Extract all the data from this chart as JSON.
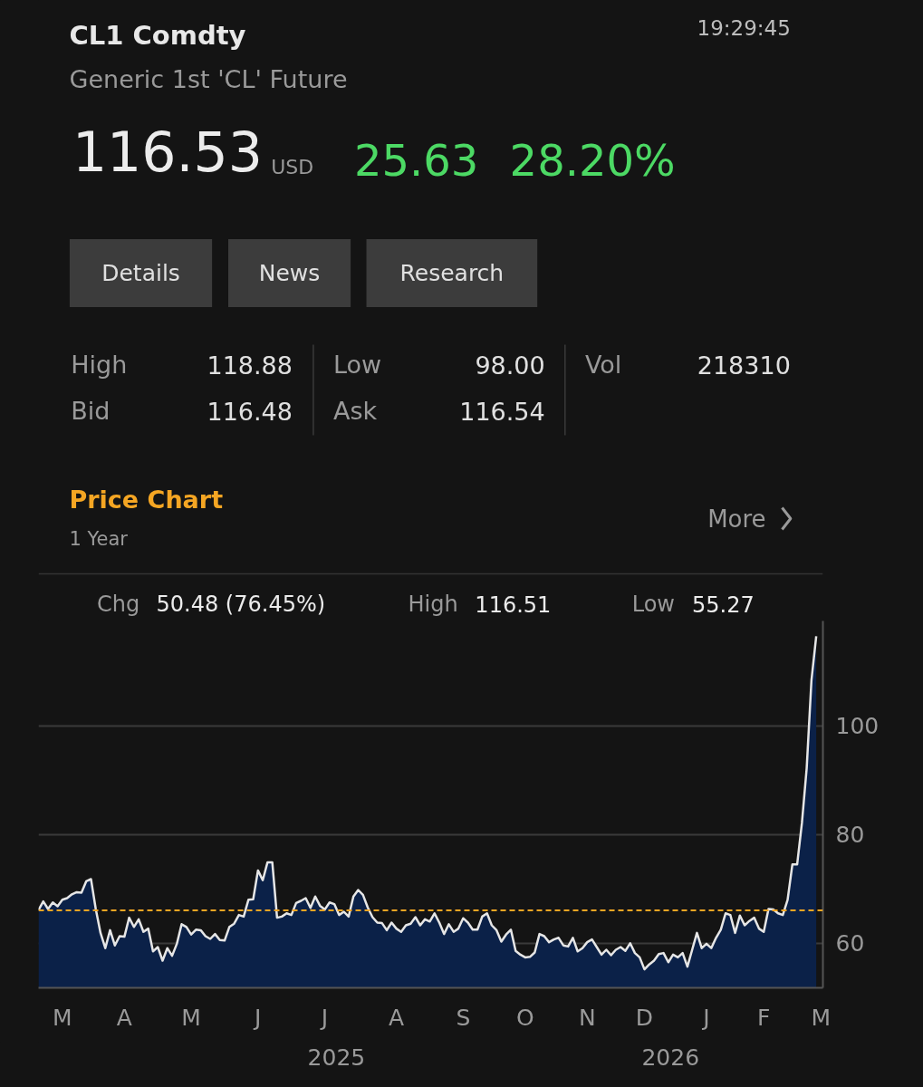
{
  "chart_data": {
    "type": "area",
    "title": "CL1 Comdty",
    "subtitle": "Generic 1st 'CL' Future",
    "annotations": [
      "19:29:45",
      "116.53",
      "USD",
      "25.63",
      "28.20%",
      "Details",
      "News",
      "Research",
      "High",
      "118.88",
      "Low",
      "98.00",
      "Vol",
      "218310",
      "Bid",
      "116.48",
      "Ask",
      "116.54",
      "Price Chart",
      "1 Year",
      "More",
      "Chg",
      "50.48 (76.45%)",
      "High",
      "116.51",
      "Low",
      "55.27",
      "2025",
      "2026"
    ],
    "categories": [
      null,
      null,
      null,
      null,
      null,
      "M",
      null,
      null,
      null,
      null,
      null,
      null,
      null,
      null,
      null,
      null,
      null,
      null,
      "A",
      null,
      null,
      null,
      null,
      null,
      null,
      null,
      null,
      null,
      null,
      null,
      null,
      null,
      "M",
      null,
      null,
      null,
      null,
      null,
      null,
      null,
      null,
      null,
      null,
      null,
      null,
      null,
      "J",
      null,
      null,
      null,
      null,
      null,
      null,
      null,
      null,
      null,
      null,
      null,
      null,
      null,
      "J",
      null,
      null,
      null,
      null,
      null,
      null,
      null,
      null,
      null,
      null,
      null,
      null,
      null,
      null,
      "A",
      null,
      null,
      null,
      null,
      null,
      null,
      null,
      null,
      null,
      null,
      null,
      null,
      null,
      "S",
      null,
      null,
      null,
      null,
      null,
      null,
      null,
      null,
      null,
      null,
      null,
      null,
      "O",
      null,
      null,
      null,
      null,
      null,
      null,
      null,
      null,
      null,
      null,
      null,
      null,
      "N",
      null,
      null,
      null,
      null,
      null,
      null,
      null,
      null,
      null,
      null,
      null,
      "D",
      null,
      null,
      null,
      null,
      null,
      null,
      null,
      null,
      null,
      null,
      null,
      null,
      "J",
      null,
      null,
      null,
      null,
      null,
      null,
      null,
      null,
      null,
      null,
      null,
      "F",
      null,
      null,
      null,
      null,
      null,
      null,
      null,
      null,
      null,
      null,
      null,
      "M"
    ],
    "series": [
      {
        "color": "#0b2148",
        "values": [
          66.1,
          67.7,
          66.3,
          67.5,
          66.8,
          68.0,
          68.3,
          69.0,
          69.4,
          69.3,
          71.4,
          71.8,
          66.3,
          61.9,
          59.1,
          62.4,
          59.6,
          61.3,
          61.2,
          64.7,
          63.0,
          64.4,
          62.1,
          62.7,
          58.5,
          59.3,
          56.8,
          59.1,
          57.7,
          59.9,
          63.5,
          63.0,
          61.6,
          62.5,
          62.4,
          61.3,
          60.8,
          61.7,
          60.6,
          60.5,
          63.0,
          63.6,
          65.2,
          64.9,
          68.0,
          68.1,
          73.4,
          71.6,
          74.9,
          74.9,
          64.7,
          64.9,
          65.5,
          65.2,
          67.4,
          67.8,
          68.3,
          66.5,
          68.6,
          66.9,
          66.2,
          67.5,
          67.2,
          65.2,
          65.8,
          64.9,
          68.6,
          69.8,
          68.9,
          66.6,
          64.8,
          63.8,
          63.7,
          62.4,
          63.8,
          62.7,
          62.1,
          63.3,
          63.6,
          64.8,
          63.3,
          64.4,
          64.0,
          65.5,
          63.8,
          61.7,
          63.5,
          62.1,
          62.7,
          64.6,
          63.8,
          62.5,
          62.5,
          64.9,
          65.5,
          63.3,
          62.4,
          60.3,
          61.6,
          62.5,
          58.6,
          57.9,
          57.4,
          57.5,
          58.3,
          61.7,
          61.3,
          60.2,
          60.7,
          61.0,
          59.6,
          59.4,
          61.0,
          58.5,
          59.1,
          60.2,
          60.7,
          59.3,
          57.9,
          58.8,
          57.8,
          58.8,
          59.3,
          58.6,
          60.0,
          58.2,
          57.4,
          55.2,
          56.1,
          56.8,
          58.0,
          58.2,
          56.5,
          57.9,
          57.4,
          58.2,
          55.7,
          58.8,
          61.9,
          59.1,
          59.9,
          59.1,
          61.0,
          62.5,
          65.5,
          65.2,
          61.9,
          65.1,
          63.3,
          64.1,
          64.7,
          62.7,
          62.1,
          66.3,
          66.2,
          65.5,
          65.2,
          68.0,
          74.5,
          74.5,
          82.1,
          92.2,
          108.4,
          116.5,
          null
        ]
      }
    ],
    "ylim": [
      51.8,
      119.3
    ],
    "yticks": [
      60,
      80,
      100
    ],
    "grid": "y",
    "ref_lines": [
      {
        "axis": "y",
        "value": 66.03,
        "color": "#f5a623",
        "line_style": "dashed"
      }
    ]
  }
}
